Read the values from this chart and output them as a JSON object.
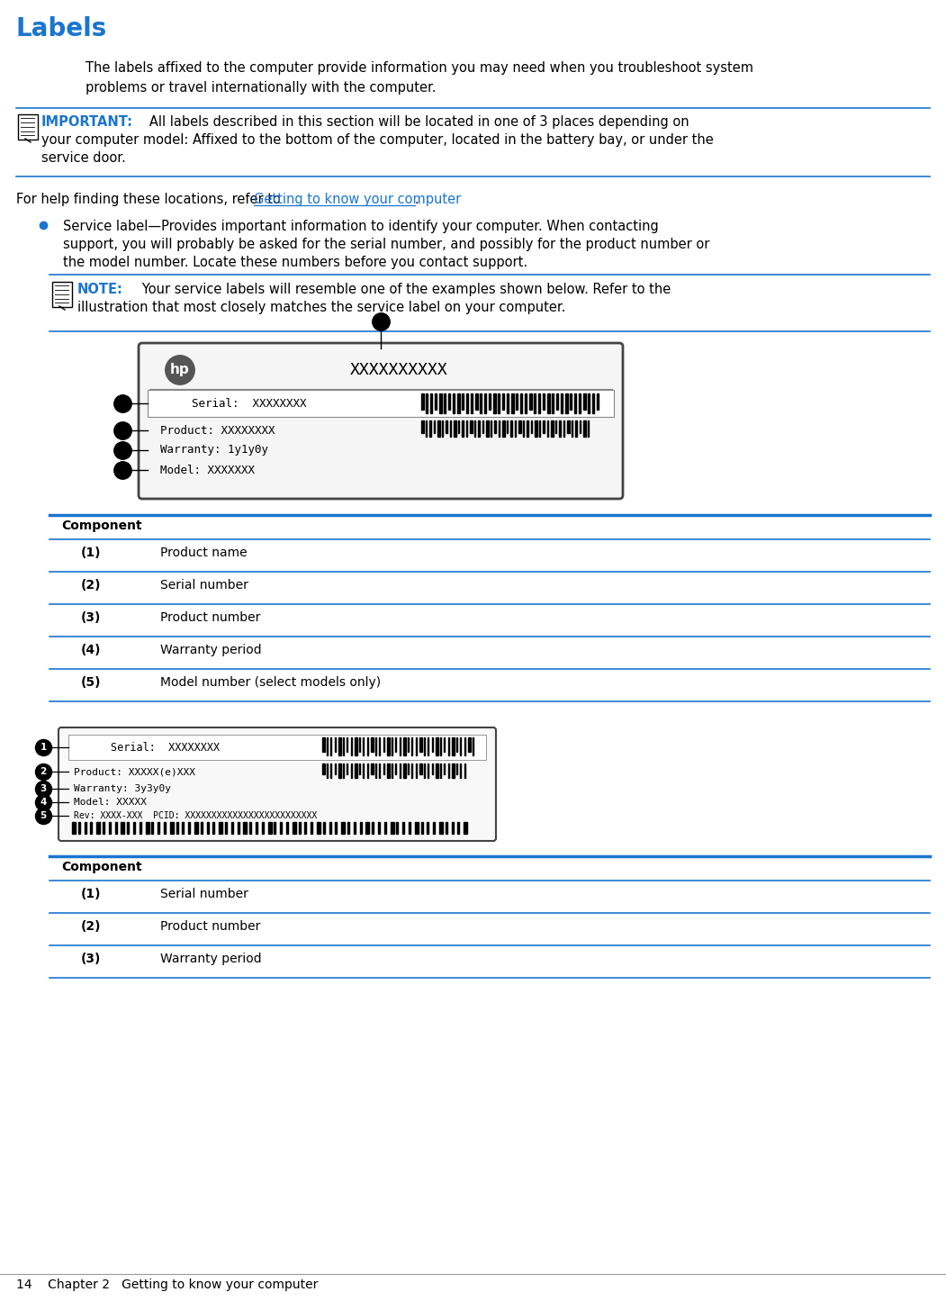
{
  "title": "Labels",
  "title_color": "#1a75cf",
  "bg_color": "#ffffff",
  "para1_line1": "The labels affixed to the computer provide information you may need when you troubleshoot system",
  "para1_line2": "problems or travel internationally with the computer.",
  "important_label": "IMPORTANT:",
  "important_text_line1": "   All labels described in this section will be located in one of 3 places depending on",
  "important_text_line2": "your computer model: Affixed to the bottom of the computer, located in the battery bay, or under the",
  "important_text_line3": "service door.",
  "para2_prefix": "For help finding these locations, refer to ",
  "para2_link": "Getting to know your computer",
  "para2_suffix": ".",
  "bullet_text_line1": "Service label—Provides important information to identify your computer. When contacting",
  "bullet_text_line2": "support, you will probably be asked for the serial number, and possibly for the product number or",
  "bullet_text_line3": "the model number. Locate these numbers before you contact support.",
  "note_label": "NOTE:",
  "note_text_line1": "   Your service labels will resemble one of the examples shown below. Refer to the",
  "note_text_line2": "illustration that most closely matches the service label on your computer.",
  "table1_header": "Component",
  "table1_rows": [
    [
      "(1)",
      "Product name"
    ],
    [
      "(2)",
      "Serial number"
    ],
    [
      "(3)",
      "Product number"
    ],
    [
      "(4)",
      "Warranty period"
    ],
    [
      "(5)",
      "Model number (select models only)"
    ]
  ],
  "table2_header": "Component",
  "table2_rows": [
    [
      "(1)",
      "Serial number"
    ],
    [
      "(2)",
      "Product number"
    ],
    [
      "(3)",
      "Warranty period"
    ]
  ],
  "footer_text": "14    Chapter 2   Getting to know your computer",
  "blue_color": "#1a75cf",
  "line_color": "#1a75cf",
  "text_color": "#000000",
  "font_size_title": 20,
  "font_size_body": 10.5,
  "font_size_footer": 10
}
